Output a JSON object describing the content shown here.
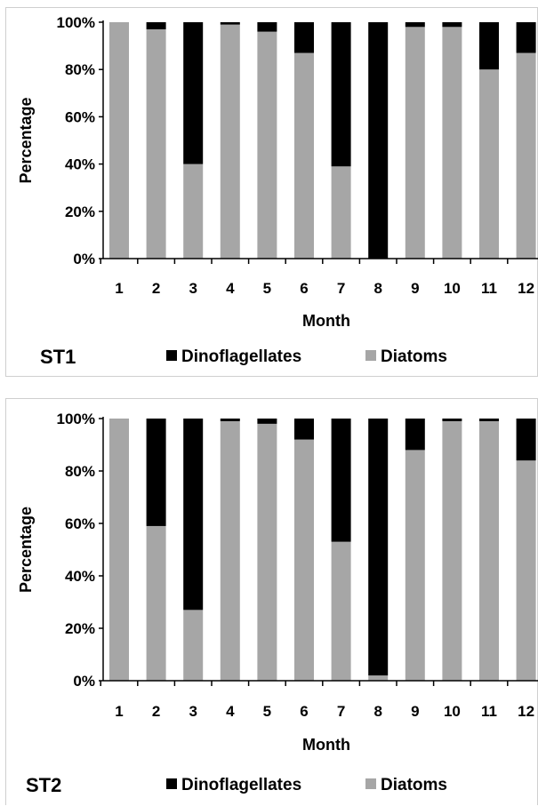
{
  "chart_data": [
    {
      "type": "bar",
      "stacked": true,
      "percent": true,
      "panel_label": "ST1",
      "categories": [
        "1",
        "2",
        "3",
        "4",
        "5",
        "6",
        "7",
        "8",
        "9",
        "10",
        "11",
        "12"
      ],
      "series": [
        {
          "name": "Diatoms",
          "color": "#a6a6a6",
          "values": [
            100,
            97,
            40,
            99,
            96,
            87,
            39,
            0,
            98,
            98,
            80,
            87
          ]
        },
        {
          "name": "Dinoflagellates",
          "color": "#000000",
          "values": [
            0,
            3,
            60,
            1,
            4,
            13,
            61,
            100,
            2,
            2,
            20,
            13
          ]
        }
      ],
      "xlabel": "Month",
      "ylabel": "Percentage",
      "ylim": [
        0,
        100
      ],
      "yticks": [
        "0%",
        "20%",
        "40%",
        "60%",
        "80%",
        "100%"
      ],
      "legend": [
        "Dinoflagellates",
        "Diatoms"
      ],
      "legend_position": "bottom",
      "grid": false
    },
    {
      "type": "bar",
      "stacked": true,
      "percent": true,
      "panel_label": "ST2",
      "categories": [
        "1",
        "2",
        "3",
        "4",
        "5",
        "6",
        "7",
        "8",
        "9",
        "10",
        "11",
        "12"
      ],
      "series": [
        {
          "name": "Diatoms",
          "color": "#a6a6a6",
          "values": [
            100,
            59,
            27,
            99,
            98,
            92,
            53,
            2,
            88,
            99,
            99,
            84
          ]
        },
        {
          "name": "Dinoflagellates",
          "color": "#000000",
          "values": [
            0,
            41,
            73,
            1,
            2,
            8,
            47,
            98,
            12,
            1,
            1,
            16
          ]
        }
      ],
      "xlabel": "Month",
      "ylabel": "Percentage",
      "ylim": [
        0,
        100
      ],
      "yticks": [
        "0%",
        "20%",
        "40%",
        "60%",
        "80%",
        "100%"
      ],
      "legend": [
        "Dinoflagellates",
        "Diatoms"
      ],
      "legend_position": "bottom",
      "grid": false
    }
  ]
}
